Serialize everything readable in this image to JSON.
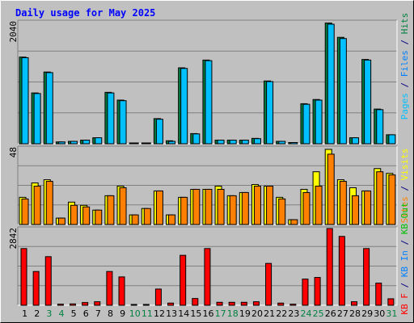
{
  "chart_data": {
    "type": "bar",
    "title": "Daily usage for May 2025",
    "categories": [
      "1",
      "2",
      "3",
      "4",
      "5",
      "6",
      "7",
      "8",
      "9",
      "10",
      "11",
      "12",
      "13",
      "14",
      "15",
      "16",
      "17",
      "18",
      "19",
      "20",
      "21",
      "22",
      "23",
      "24",
      "25",
      "26",
      "27",
      "28",
      "29",
      "30",
      "31"
    ],
    "weekend_days": [
      "3",
      "4",
      "10",
      "11",
      "17",
      "18",
      "24",
      "25",
      "31"
    ],
    "panels": [
      {
        "id": "top",
        "ymax": 2040,
        "ymax_label": "2040",
        "series": [
          {
            "name": "Hits",
            "color": "#008040",
            "values": [
              1450,
              850,
              1200,
              30,
              40,
              60,
              100,
              860,
              730,
              10,
              10,
              420,
              50,
              1270,
              170,
              1400,
              60,
              60,
              60,
              90,
              1050,
              40,
              20,
              670,
              740,
              2020,
              1780,
              100,
              1410,
              580,
              150
            ]
          },
          {
            "name": "Files",
            "color": "#00c0ff",
            "values": [
              1440,
              840,
              1190,
              30,
              40,
              60,
              100,
              850,
              720,
              10,
              10,
              410,
              40,
              1260,
              165,
              1390,
              60,
              60,
              60,
              85,
              1040,
              40,
              20,
              660,
              730,
              2000,
              1760,
              100,
              1400,
              570,
              150
            ]
          },
          {
            "name": "Pages",
            "color": "#00c0ff",
            "values": []
          }
        ]
      },
      {
        "id": "middle",
        "ymax": 48,
        "ymax_label": "48",
        "series": [
          {
            "name": "Visits",
            "color": "#ffff00",
            "values": [
              17,
              26,
              28,
              4,
              14,
              12,
              9,
              18,
              24,
              6,
              10,
              21,
              6,
              17,
              22,
              22,
              24,
              18,
              20,
              25,
              24,
              17,
              3,
              22,
              33,
              47,
              28,
              23,
              21,
              35,
              32
            ]
          },
          {
            "name": "Sites",
            "color": "#ff8000",
            "values": [
              16,
              24,
              27,
              4,
              12,
              11,
              9,
              18,
              23,
              6,
              10,
              21,
              6,
              17,
              22,
              22,
              22,
              18,
              20,
              24,
              24,
              16,
              3,
              20,
              24,
              44,
              27,
              18,
              21,
              33,
              31
            ]
          }
        ]
      },
      {
        "id": "bottom",
        "ymax": 2842,
        "ymax_label": "2842",
        "series": [
          {
            "name": "KB In",
            "color": "#0080ff",
            "values": []
          },
          {
            "name": "KB Out",
            "color": "#00c000",
            "values": []
          },
          {
            "name": "KB F",
            "color": "#ff0000",
            "values": [
              2100,
              1250,
              1800,
              40,
              50,
              100,
              130,
              1250,
              1050,
              20,
              20,
              600,
              80,
              1850,
              250,
              2100,
              110,
              110,
              110,
              130,
              1550,
              80,
              40,
              970,
              1030,
              2842,
              2550,
              130,
              2100,
              820,
              240
            ]
          }
        ]
      }
    ],
    "right_legend_top": [
      {
        "text": "Pages",
        "color": "#00c0ff"
      },
      {
        "text": " / ",
        "color": "#000080"
      },
      {
        "text": "Files",
        "color": "#0080ff"
      },
      {
        "text": " / ",
        "color": "#000080"
      },
      {
        "text": "Hits",
        "color": "#008040"
      }
    ],
    "right_legend_middle": [
      {
        "text": "Sites",
        "color": "#ff8000"
      },
      {
        "text": " / ",
        "color": "#000080"
      },
      {
        "text": "Visits",
        "color": "#ffff00"
      }
    ],
    "right_legend_bottom": [
      {
        "text": "KB F",
        "color": "#ff0000"
      },
      {
        "text": " / ",
        "color": "#000080"
      },
      {
        "text": "KB In",
        "color": "#0080ff"
      },
      {
        "text": " / ",
        "color": "#000080"
      },
      {
        "text": "KB Out",
        "color": "#00c000"
      }
    ],
    "colors": {
      "background": "#c0c0c0",
      "title": "#0000ff",
      "weekday_label": "#000000",
      "weekend_label": "#008040",
      "gridline": "#808080"
    }
  }
}
